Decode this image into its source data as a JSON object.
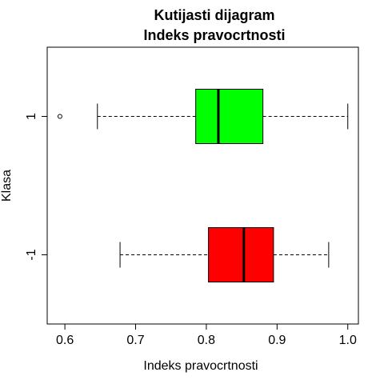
{
  "chart_data": {
    "type": "boxplot",
    "orientation": "horizontal",
    "title_line1": "Kutijasti dijagram",
    "title_line2": "Indeks pravocrtnosti",
    "xlabel": "Indeks pravocrtnosti",
    "ylabel": "Klasa",
    "xlim": [
      0.575,
      1.015
    ],
    "x_ticks": [
      "0.6",
      "0.7",
      "0.8",
      "0.9",
      "1.0"
    ],
    "grid": false,
    "boxes": [
      {
        "category": "-1",
        "color": "#ff0000",
        "whisker_low": 0.678,
        "q1": 0.803,
        "median": 0.853,
        "q3": 0.895,
        "whisker_high": 0.973,
        "outliers": []
      },
      {
        "category": "1",
        "color": "#00ff00",
        "whisker_low": 0.646,
        "q1": 0.785,
        "median": 0.817,
        "q3": 0.88,
        "whisker_high": 1.0,
        "outliers": [
          0.593
        ]
      }
    ]
  }
}
